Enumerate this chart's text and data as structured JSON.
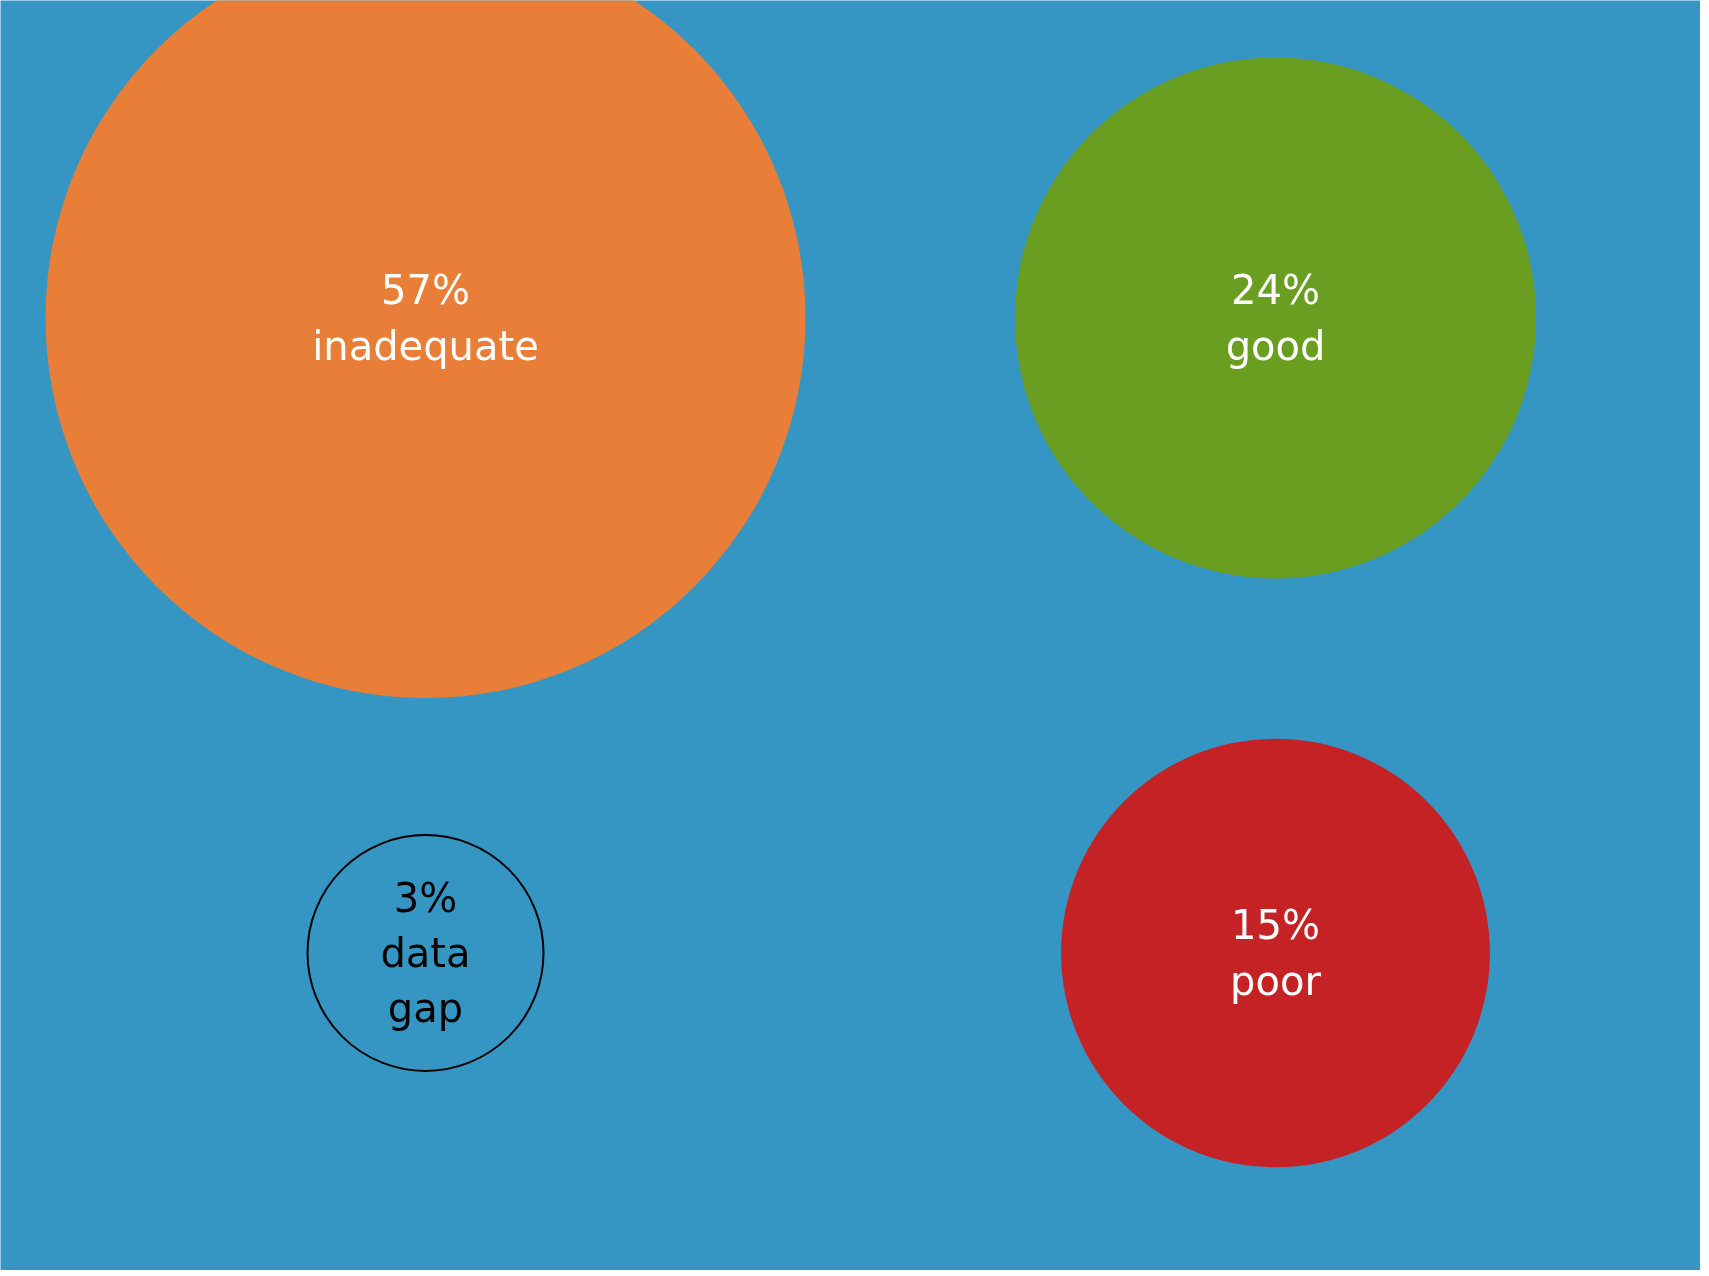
{
  "chart_data": {
    "type": "other",
    "categories": [
      "inadequate",
      "good",
      "data gap",
      "poor"
    ],
    "values": [
      57,
      24,
      3,
      15
    ],
    "value_labels": [
      "57%",
      "24%",
      "3%",
      "15%"
    ],
    "colors": [
      "#e87e37",
      "#6a9e20",
      null,
      "#c42224"
    ]
  }
}
